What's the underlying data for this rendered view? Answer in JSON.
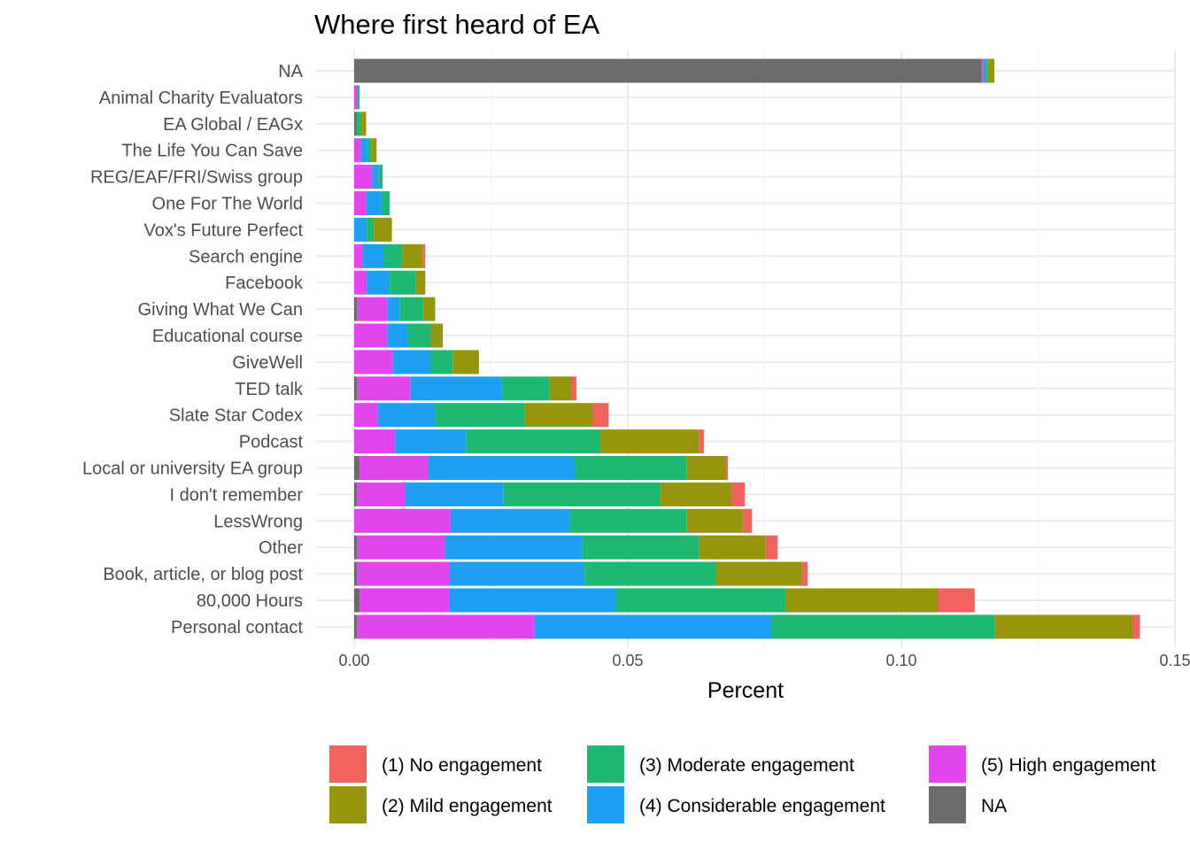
{
  "chart_data": {
    "type": "bar",
    "orientation": "horizontal",
    "stacked": true,
    "title": "Where first heard of EA",
    "xlabel": "Percent",
    "ylabel": "",
    "xlim": [
      0,
      0.15
    ],
    "x_ticks": [
      "0.00",
      "0.05",
      "0.10",
      "0.15"
    ],
    "x_tick_values": [
      0,
      0.05,
      0.1,
      0.15
    ],
    "grid": true,
    "legend_position": "bottom",
    "categories": [
      "NA",
      "Animal Charity Evaluators",
      "EA Global / EAGx",
      "The Life You Can Save",
      "REG/EAF/FRI/Swiss group",
      "One For The World",
      "Vox's Future Perfect",
      "Search engine",
      "Facebook",
      "Giving What We Can",
      "Educational course",
      "GiveWell",
      "TED talk",
      "Slate Star Codex",
      "Podcast",
      "Local or university EA group",
      "I don't remember",
      "LessWrong",
      "Other",
      "Book, article, or blog post",
      "80,000 Hours",
      "Personal contact"
    ],
    "series": [
      {
        "name": "NA",
        "color": "#6b6b6b",
        "values": [
          0.1147,
          0,
          0.0004,
          0,
          0,
          0,
          0,
          0,
          0,
          0.0005,
          0,
          0,
          0.0005,
          0,
          0,
          0.001,
          0.0005,
          0,
          0.0005,
          0.0005,
          0.001,
          0.0005
        ]
      },
      {
        "name": "(5) High engagement",
        "color": "#e046ec",
        "values": [
          0.0003,
          0.0005,
          0,
          0.0012,
          0.0033,
          0.0022,
          0,
          0.0016,
          0.0023,
          0.0056,
          0.0061,
          0.007,
          0.0098,
          0.0043,
          0.0075,
          0.0125,
          0.0088,
          0.0176,
          0.0161,
          0.0169,
          0.0163,
          0.0324
        ]
      },
      {
        "name": "(4) Considerable engagement",
        "color": "#1e9ff2",
        "values": [
          0.0004,
          0,
          0,
          0.0012,
          0.0012,
          0.0028,
          0.0023,
          0.0039,
          0.0042,
          0.0022,
          0.0037,
          0.007,
          0.0167,
          0.0106,
          0.013,
          0.0268,
          0.018,
          0.0219,
          0.0251,
          0.0247,
          0.0306,
          0.0434
        ]
      },
      {
        "name": "(3) Moderate engagement",
        "color": "#1db872",
        "values": [
          0.0004,
          0.0005,
          0.0009,
          0.0008,
          0.0007,
          0.0015,
          0.0013,
          0.0033,
          0.0048,
          0.0042,
          0.0042,
          0.004,
          0.0087,
          0.0163,
          0.0245,
          0.0205,
          0.0287,
          0.0213,
          0.0213,
          0.024,
          0.031,
          0.0408
        ]
      },
      {
        "name": "(2) Mild engagement",
        "color": "#95960d",
        "values": [
          0.0012,
          0,
          0.0009,
          0.0009,
          0,
          0,
          0.0033,
          0.0037,
          0.0017,
          0.0023,
          0.0022,
          0.0048,
          0.0041,
          0.0125,
          0.018,
          0.007,
          0.013,
          0.0102,
          0.0122,
          0.0158,
          0.0279,
          0.0252
        ]
      },
      {
        "name": "(1) No engagement",
        "color": "#f2625f",
        "values": [
          0,
          0,
          0,
          0,
          0,
          0,
          0,
          0.0005,
          0,
          0,
          0,
          0,
          0.0008,
          0.0028,
          0.0009,
          0.0005,
          0.0024,
          0.0017,
          0.0022,
          0.001,
          0.0066,
          0.0013
        ]
      }
    ],
    "legend": [
      {
        "label": "(1) No engagement",
        "color": "#f2625f"
      },
      {
        "label": "(2) Mild engagement",
        "color": "#95960d"
      },
      {
        "label": "(3) Moderate engagement",
        "color": "#1db872"
      },
      {
        "label": "(4) Considerable engagement",
        "color": "#1e9ff2"
      },
      {
        "label": "(5) High engagement",
        "color": "#e046ec"
      },
      {
        "label": "NA",
        "color": "#6b6b6b"
      }
    ]
  }
}
